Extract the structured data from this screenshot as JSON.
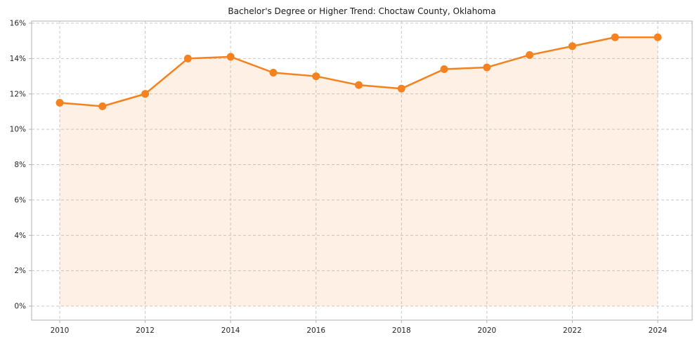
{
  "chart_data": {
    "type": "area",
    "title": "Bachelor's Degree or Higher Trend: Choctaw County, Oklahoma",
    "x": [
      2010,
      2011,
      2012,
      2013,
      2014,
      2015,
      2016,
      2017,
      2018,
      2019,
      2020,
      2021,
      2022,
      2023,
      2024
    ],
    "values": [
      11.5,
      11.3,
      12.0,
      14.0,
      14.1,
      13.2,
      13.0,
      12.5,
      12.3,
      13.4,
      13.5,
      14.2,
      14.7,
      15.2,
      15.2
    ],
    "xlabel": "",
    "ylabel": "",
    "ylim": [
      0,
      16
    ],
    "yticks": [
      0,
      2,
      4,
      6,
      8,
      10,
      12,
      14,
      16
    ],
    "ytick_suffix": "%",
    "xticks": [
      2010,
      2012,
      2014,
      2016,
      2018,
      2020,
      2022,
      2024
    ],
    "grid": true,
    "legend": "none",
    "colors": {
      "line": "#f5821f",
      "marker": "#f5821f",
      "fill": "#f5821f",
      "fill_opacity": 0.12,
      "grid": "#c9c9c9",
      "spine": "#b0b0b0",
      "text": "#262626"
    }
  }
}
